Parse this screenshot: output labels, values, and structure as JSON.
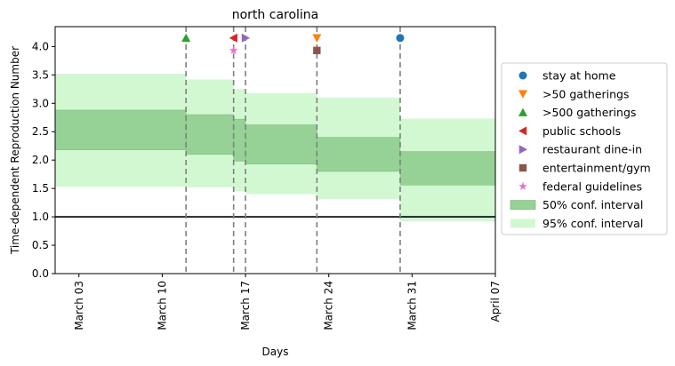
{
  "chart_data": {
    "type": "area",
    "title": "north carolina",
    "xlabel": "Days",
    "ylabel": "Time-dependent Reproduction Number",
    "ylim": [
      0,
      4.35
    ],
    "xlim": [
      "2020-03-01",
      "2020-04-07"
    ],
    "yticks": [
      0.0,
      0.5,
      1.0,
      1.5,
      2.0,
      2.5,
      3.0,
      3.5,
      4.0
    ],
    "ytick_labels": [
      "0.0",
      "0.5",
      "1.0",
      "1.5",
      "2.0",
      "2.5",
      "3.0",
      "3.5",
      "4.0"
    ],
    "xticks": [
      "2020-03-03",
      "2020-03-10",
      "2020-03-17",
      "2020-03-24",
      "2020-03-31",
      "2020-04-07"
    ],
    "xtick_labels": [
      "March 03",
      "March 10",
      "March 17",
      "March 24",
      "March 31",
      "April 07"
    ],
    "reference_line": 1.0,
    "segments": [
      {
        "start": "2020-03-01",
        "end": "2020-03-12",
        "ci50": [
          2.18,
          2.88
        ],
        "ci95": [
          1.53,
          3.52
        ]
      },
      {
        "start": "2020-03-12",
        "end": "2020-03-16",
        "ci50": [
          2.1,
          2.8
        ],
        "ci95": [
          1.52,
          3.42
        ]
      },
      {
        "start": "2020-03-16",
        "end": "2020-03-17",
        "ci50": [
          1.98,
          2.72
        ],
        "ci95": [
          1.45,
          3.25
        ]
      },
      {
        "start": "2020-03-17",
        "end": "2020-03-23",
        "ci50": [
          1.93,
          2.62
        ],
        "ci95": [
          1.4,
          3.18
        ]
      },
      {
        "start": "2020-03-23",
        "end": "2020-03-30",
        "ci50": [
          1.8,
          2.4
        ],
        "ci95": [
          1.31,
          3.1
        ]
      },
      {
        "start": "2020-03-30",
        "end": "2020-04-07",
        "ci50": [
          1.56,
          2.15
        ],
        "ci95": [
          0.92,
          2.73
        ]
      }
    ],
    "interventions": [
      {
        "name": "stay at home",
        "date": "2020-03-30",
        "y": 4.15,
        "marker": "circle",
        "color": "#1f77b4"
      },
      {
        "name": ">50 gatherings",
        "date": "2020-03-23",
        "y": 4.15,
        "marker": "triangle-down",
        "color": "#ff7f0e"
      },
      {
        "name": ">500 gatherings",
        "date": "2020-03-12",
        "y": 4.15,
        "marker": "triangle-up",
        "color": "#2ca02c"
      },
      {
        "name": "public schools",
        "date": "2020-03-16",
        "y": 4.15,
        "marker": "triangle-left",
        "color": "#d62728"
      },
      {
        "name": "restaurant dine-in",
        "date": "2020-03-17",
        "y": 4.15,
        "marker": "triangle-right",
        "color": "#9467bd"
      },
      {
        "name": "entertainment/gym",
        "date": "2020-03-23",
        "y": 3.93,
        "marker": "square",
        "color": "#8c564b"
      },
      {
        "name": "federal guidelines",
        "date": "2020-03-16",
        "y": 3.93,
        "marker": "star",
        "color": "#e377c2"
      }
    ],
    "legend": {
      "placement": "right",
      "ci50_label": "50% conf. interval",
      "ci95_label": "95% conf. interval"
    },
    "colors": {
      "ci50": "#96d296",
      "ci95": "#d2f8d2",
      "vline": "#7f7f7f",
      "reference": "#000000"
    }
  }
}
